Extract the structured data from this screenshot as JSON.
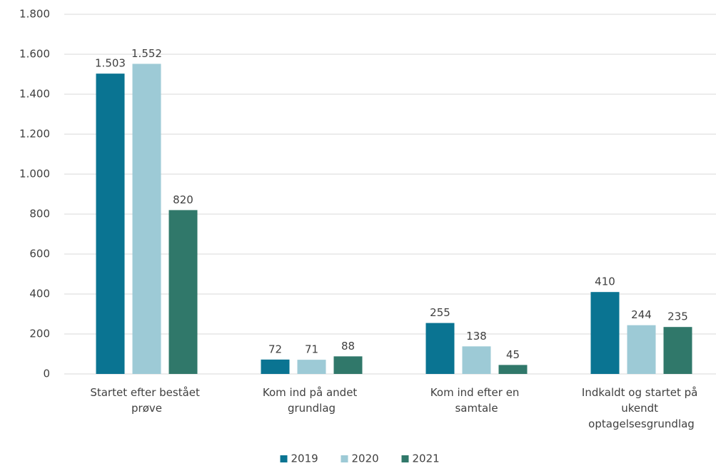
{
  "chart_data": {
    "type": "bar",
    "categories": [
      "Startet efter bestået prøve",
      "Kom ind på andet grundlag",
      "Kom ind efter en samtale",
      "Indkaldt og startet på ukendt optagelsesgrundlag"
    ],
    "series": [
      {
        "name": "2019",
        "color": "#0a7492",
        "values": [
          1503,
          72,
          255,
          410
        ],
        "value_labels": [
          "1.503",
          "72",
          "255",
          "410"
        ]
      },
      {
        "name": "2020",
        "color": "#9dcad6",
        "values": [
          1552,
          71,
          138,
          244
        ],
        "value_labels": [
          "1.552",
          "71",
          "138",
          "244"
        ]
      },
      {
        "name": "2021",
        "color": "#30786a",
        "values": [
          820,
          88,
          45,
          235
        ],
        "value_labels": [
          "820",
          "88",
          "45",
          "235"
        ]
      }
    ],
    "ylim": [
      0,
      1800
    ],
    "yticks": [
      0,
      200,
      400,
      600,
      800,
      {
        "value": 1000,
        "label": "1.000"
      },
      {
        "value": 1200,
        "label": "1.200"
      },
      {
        "value": 1400,
        "label": "1.400"
      },
      {
        "value": 1600,
        "label": "1.600"
      },
      {
        "value": 1800,
        "label": "1.800"
      }
    ],
    "grid": true,
    "legend": "bottom"
  }
}
